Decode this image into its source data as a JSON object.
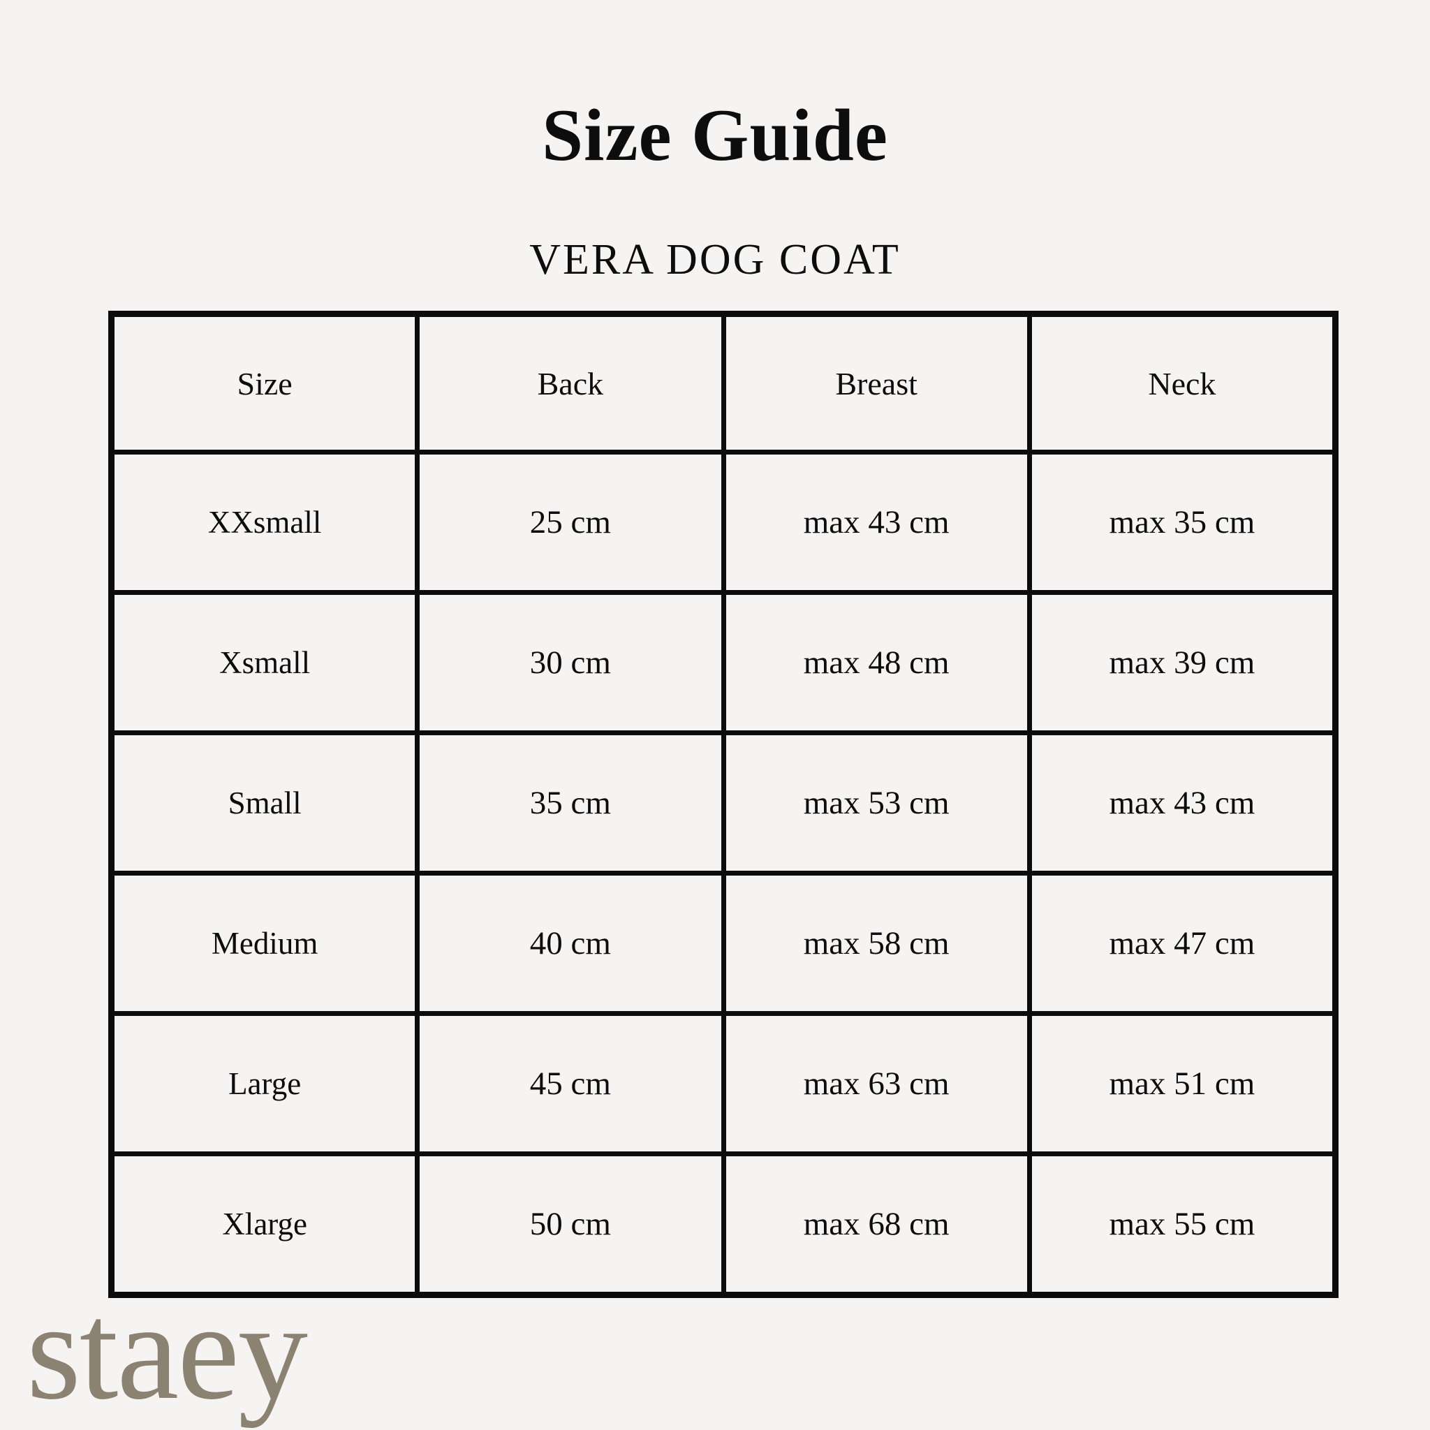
{
  "page": {
    "title": "Size Guide",
    "subtitle": "VERA DOG COAT",
    "background_color": "#f5f4f2",
    "table_border_color": "#0c0c0c",
    "logo_text": "staey",
    "logo_color": "#8b8271"
  },
  "table": {
    "headers": [
      "Size",
      "Back",
      "Breast",
      "Neck"
    ],
    "rows": [
      {
        "size": "XXsmall",
        "back": "25 cm",
        "breast": "max 43 cm",
        "neck": "max 35 cm"
      },
      {
        "size": "Xsmall",
        "back": "30 cm",
        "breast": "max 48 cm",
        "neck": "max 39 cm"
      },
      {
        "size": "Small",
        "back": "35 cm",
        "breast": "max 53 cm",
        "neck": "max 43 cm"
      },
      {
        "size": "Medium",
        "back": "40 cm",
        "breast": "max 58 cm",
        "neck": "max 47 cm"
      },
      {
        "size": "Large",
        "back": "45 cm",
        "breast": "max 63 cm",
        "neck": "max 51 cm"
      },
      {
        "size": "Xlarge",
        "back": "50 cm",
        "breast": "max 68 cm",
        "neck": "max 55 cm"
      }
    ]
  }
}
